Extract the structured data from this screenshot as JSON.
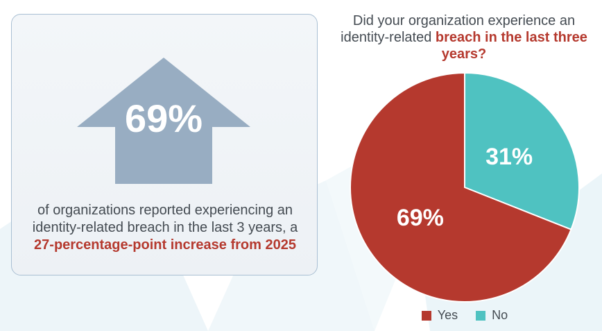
{
  "stat_card": {
    "big_value": "69%",
    "description_plain": "of organizations reported experiencing an identity-related breach in the last 3 years, a ",
    "description_highlight": "27-percentage-point increase from 2025",
    "arrow_color": "#98adc2"
  },
  "chart_data": {
    "type": "pie",
    "title_plain": "Did your organization experience an identity-related ",
    "title_highlight": "breach in the last three years?",
    "slices": [
      {
        "label": "Yes",
        "value": 69,
        "display": "69%",
        "color": "#b5392e"
      },
      {
        "label": "No",
        "value": 31,
        "display": "31%",
        "color": "#4fc2c1"
      }
    ],
    "legend": [
      {
        "label": "Yes",
        "color": "#b5392e"
      },
      {
        "label": "No",
        "color": "#4fc2c1"
      }
    ],
    "legend_position": "bottom"
  }
}
